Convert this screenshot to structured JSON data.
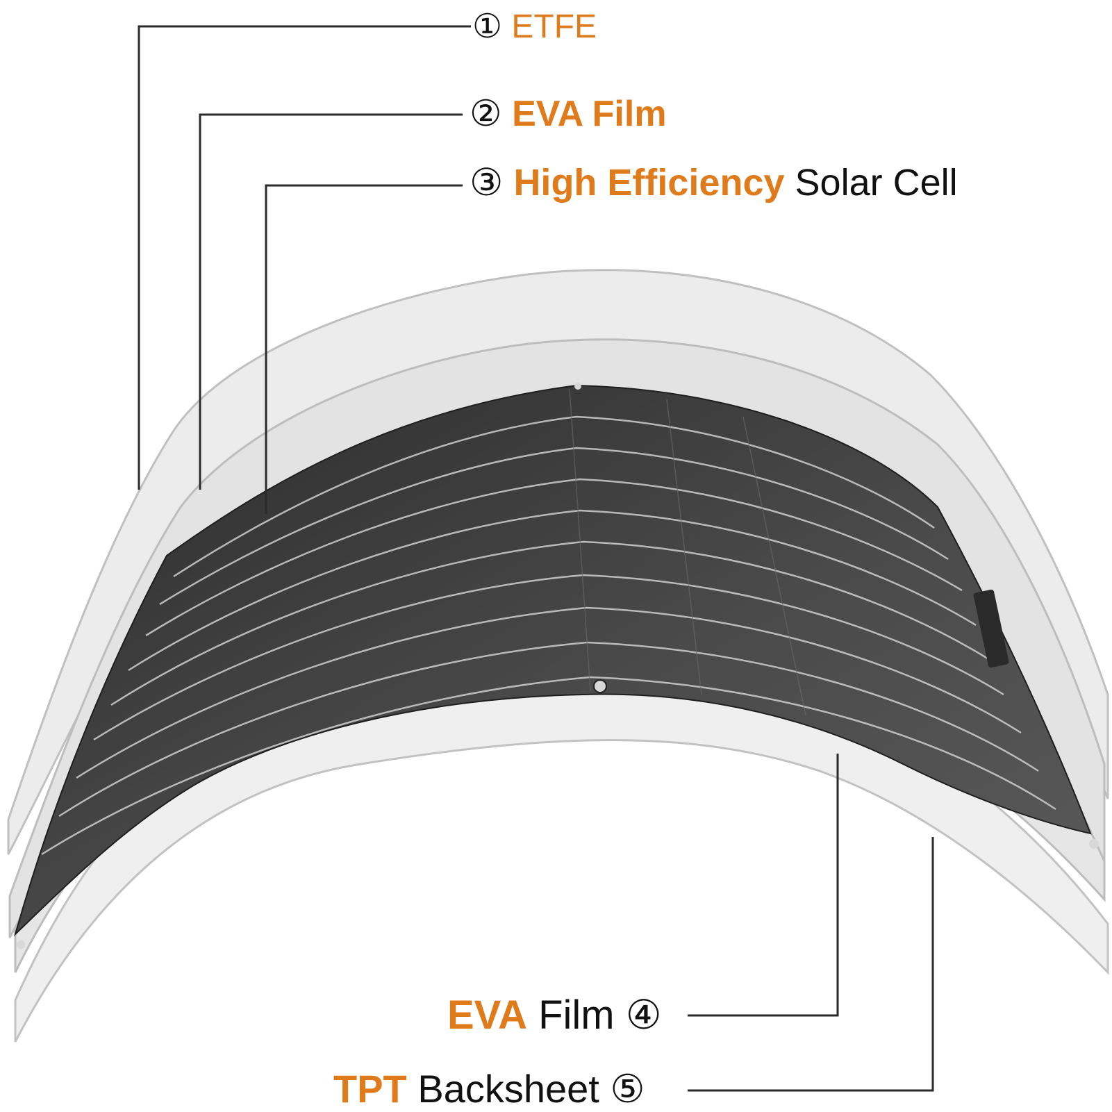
{
  "colors": {
    "accent": "#e07b1c",
    "text": "#111111",
    "leader_line": "#2a2a2a",
    "sheet_fill": "#e9e9e9",
    "sheet_stroke": "#bdbdbd",
    "cell_fill": "#3b3b3b"
  },
  "layers": [
    {
      "number": "①",
      "highlight": "ETFE",
      "rest": ""
    },
    {
      "number": "②",
      "highlight": "EVA Film",
      "rest": ""
    },
    {
      "number": "③",
      "highlight": "High Efficiency",
      "rest": "Solar Cell"
    },
    {
      "number": "④",
      "highlight": "EVA",
      "rest": "Film"
    },
    {
      "number": "⑤",
      "highlight": "TPT",
      "rest": "Backsheet"
    }
  ]
}
